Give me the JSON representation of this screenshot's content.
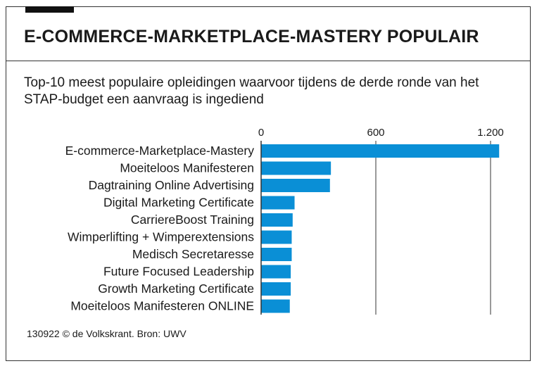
{
  "header": {
    "title": "E-COMMERCE-MARKETPLACE-MASTERY POPULAIR",
    "subtitle": "Top-10 meest populaire opleidingen waarvoor tijdens de derde ronde van het STAP-budget een aanvraag is ingediend"
  },
  "footer": {
    "source": "130922 © de Volkskrant. Bron: UWV"
  },
  "colors": {
    "bar": "#0a8fd6",
    "gridline": "#333333",
    "text": "#1a1a1a"
  },
  "chart_data": {
    "type": "bar",
    "orientation": "horizontal",
    "categories": [
      "E-commerce-Marketplace-Mastery",
      "Moeiteloos Manifesteren",
      "Dagtraining Online Advertising",
      "Digital Marketing Certificate",
      "CarriereBoost Training",
      "Wimperlifting + Wimperextensions",
      "Medisch Secretaresse",
      "Future Focused Leadership",
      "Growth Marketing Certificate",
      "Moeiteloos Manifesteren ONLINE"
    ],
    "values": [
      1245,
      365,
      360,
      175,
      165,
      160,
      160,
      155,
      155,
      150
    ],
    "xlim": [
      0,
      1200
    ],
    "xticks": [
      0,
      600,
      1200
    ],
    "xtick_labels": [
      "0",
      "600",
      "1.200"
    ],
    "grid": true,
    "legend": false
  }
}
